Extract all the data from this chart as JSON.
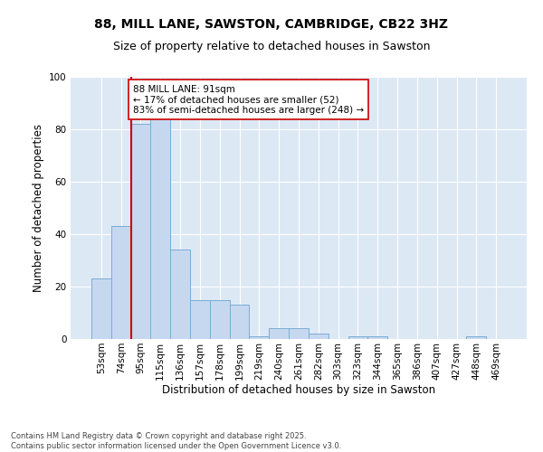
{
  "title1": "88, MILL LANE, SAWSTON, CAMBRIDGE, CB22 3HZ",
  "title2": "Size of property relative to detached houses in Sawston",
  "xlabel": "Distribution of detached houses by size in Sawston",
  "ylabel": "Number of detached properties",
  "categories": [
    "53sqm",
    "74sqm",
    "95sqm",
    "115sqm",
    "136sqm",
    "157sqm",
    "178sqm",
    "199sqm",
    "219sqm",
    "240sqm",
    "261sqm",
    "282sqm",
    "303sqm",
    "323sqm",
    "344sqm",
    "365sqm",
    "386sqm",
    "407sqm",
    "427sqm",
    "448sqm",
    "469sqm"
  ],
  "values": [
    23,
    43,
    82,
    84,
    34,
    15,
    15,
    13,
    1,
    4,
    4,
    2,
    0,
    1,
    1,
    0,
    0,
    0,
    0,
    1,
    0
  ],
  "bar_color": "#c5d8f0",
  "bar_edge_color": "#7aadd4",
  "redline_color": "#cc0000",
  "annotation_text": "88 MILL LANE: 91sqm\n← 17% of detached houses are smaller (52)\n83% of semi-detached houses are larger (248) →",
  "annotation_box_color": "#ffffff",
  "annotation_box_edge": "#cc0000",
  "ylim": [
    0,
    100
  ],
  "yticks": [
    0,
    20,
    40,
    60,
    80,
    100
  ],
  "bg_color": "#dde8f5",
  "footer": "Contains HM Land Registry data © Crown copyright and database right 2025.\nContains public sector information licensed under the Open Government Licence v3.0.",
  "title1_fontsize": 10,
  "title2_fontsize": 9,
  "xlabel_fontsize": 8.5,
  "ylabel_fontsize": 8.5,
  "tick_fontsize": 7.5,
  "annotation_fontsize": 7.5,
  "footer_fontsize": 6
}
